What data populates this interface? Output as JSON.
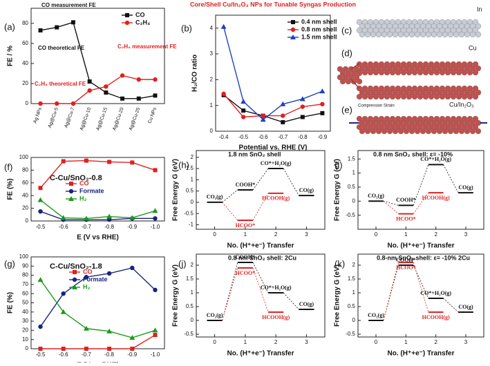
{
  "chart_data": [
    {
      "type": "line",
      "panel": "(a)",
      "ylabel": "FE / %",
      "categories": [
        "Ag NPs",
        "Ag@Cu-5",
        "Ag@Cu-7",
        "Ag@Cu-10",
        "Ag@Cu-15",
        "Ag@Cu-20",
        "Ag@Cu-25",
        "Cu NPs"
      ],
      "ylim": [
        0,
        95
      ],
      "yticks": [
        0,
        20,
        40,
        60,
        80
      ],
      "legend": "upper right",
      "series": [
        {
          "name": "CO",
          "color": "#111111",
          "marker": "square",
          "values": [
            73,
            76,
            81,
            22,
            11,
            5,
            5,
            8
          ]
        },
        {
          "name": "C₂H₄",
          "color": "#e02020",
          "marker": "circle",
          "values": [
            0,
            0,
            0,
            13,
            17,
            28,
            24,
            24
          ]
        }
      ],
      "annotations": [
        {
          "text": "CO measurement FE",
          "color": "#111111"
        },
        {
          "text": "CO theoretical FE",
          "color": "#111111"
        },
        {
          "text": "C₂H₄ measurement FE",
          "color": "#e02020"
        },
        {
          "text": "C₂H₄ theoretical FE",
          "color": "#e02020"
        }
      ]
    },
    {
      "type": "line",
      "panel": "(b)",
      "title": "Core/Shell Cu/In₂O₃ NPs for Tunable Syngas Production",
      "ylabel": "H₂/CO ratio",
      "xlabel": "Potential vs. RHE (V)",
      "categories": [
        "-0.4",
        "-0.5",
        "-0.6",
        "-0.7",
        "-0.8",
        "-0.9"
      ],
      "ylim": [
        0,
        4.5
      ],
      "yticks": [
        0,
        1,
        2,
        3,
        4
      ],
      "legend": "upper right",
      "series": [
        {
          "name": "0.4 nm shell",
          "color": "#111111",
          "marker": "square",
          "values": [
            1.4,
            0.8,
            0.6,
            0.35,
            0.55,
            0.7
          ]
        },
        {
          "name": "0.8 nm shell",
          "color": "#e02020",
          "marker": "circle",
          "values": [
            1.45,
            0.55,
            0.6,
            0.6,
            0.95,
            1.05
          ]
        },
        {
          "name": "1.5 nm shell",
          "color": "#2040c0",
          "marker": "triangle",
          "values": [
            4.05,
            1.15,
            0.45,
            1.05,
            1.25,
            1.55
          ]
        }
      ]
    },
    {
      "type": "line",
      "panel": "(f)",
      "title": "C-Cu/SnO₂-0.8",
      "ylabel": "FE (%)",
      "xlabel": "E (V vs RHE)",
      "categories": [
        "-0.5",
        "-0.6",
        "-0.7",
        "-0.8",
        "-0.9",
        "-1.0"
      ],
      "ylim": [
        0,
        100
      ],
      "yticks": [
        0,
        20,
        40,
        60,
        80,
        100
      ],
      "legend": "center",
      "series": [
        {
          "name": "CO",
          "color": "#e02020",
          "marker": "square",
          "values": [
            52,
            94,
            95,
            93,
            92,
            80
          ]
        },
        {
          "name": "Formate",
          "color": "#1a237e",
          "marker": "circle",
          "values": [
            15,
            2,
            2,
            2,
            4,
            4
          ]
        },
        {
          "name": "H₂",
          "color": "#1a9a1a",
          "marker": "triangle",
          "values": [
            33,
            5,
            4,
            7,
            5,
            16
          ]
        }
      ]
    },
    {
      "type": "energy",
      "panel": "(h)",
      "title": "1.8 nm SnO₂ shell",
      "ylabel": "Free Energy G (eV)",
      "xlabel": "No. (H⁺+e⁻) Transfer",
      "xlim": [
        -0.6,
        3.6
      ],
      "xticks": [
        0,
        1,
        2,
        3
      ],
      "ylim": [
        -1.2,
        2.3
      ],
      "yticks": [
        -1.0,
        -0.5,
        0.0,
        0.5,
        1.0,
        1.5,
        2.0
      ],
      "series": [
        {
          "color": "#111111",
          "x": [
            0,
            1,
            2,
            3
          ],
          "values": [
            0,
            0.55,
            1.5,
            0.3
          ],
          "labels": [
            "CO₂(g)",
            "COOH*",
            "CO*+H₂O(g)",
            "CO(g)"
          ]
        },
        {
          "color": "#e02020",
          "x": [
            1,
            2
          ],
          "values": [
            -0.8,
            0.4
          ],
          "labels": [
            "HCOO*",
            "HCOOH(g)"
          ]
        }
      ]
    },
    {
      "type": "energy",
      "panel": "(i)",
      "title": "0.8 nm SnO₂ shell: ε= -10%",
      "ylabel": "Free Energy G (eV)",
      "xlabel": "No. (H⁺+e⁻) Transfer",
      "xlim": [
        -0.6,
        3.6
      ],
      "xticks": [
        0,
        1,
        2,
        3
      ],
      "ylim": [
        -1.0,
        1.8
      ],
      "yticks": [
        -0.5,
        0.0,
        0.5,
        1.0,
        1.5
      ],
      "series": [
        {
          "color": "#111111",
          "x": [
            0,
            1,
            2,
            3
          ],
          "values": [
            0,
            -0.15,
            1.3,
            0.3
          ],
          "labels": [
            "CO₂(g)",
            "COOH*",
            "CO*+H₂O(g)",
            "CO(g)"
          ]
        },
        {
          "color": "#e02020",
          "x": [
            1,
            2
          ],
          "values": [
            -0.45,
            0.3
          ],
          "labels": [
            "HCOO*",
            "HCOOH(g)"
          ]
        }
      ]
    },
    {
      "type": "line",
      "panel": "(g)",
      "title": "C-Cu/SnO₂-1.8",
      "ylabel": "FE (%)",
      "xlabel": "E (V vs RHE)",
      "categories": [
        "-0.5",
        "-0.6",
        "-0.7",
        "-0.8",
        "-0.9",
        "-1.0"
      ],
      "ylim": [
        0,
        100
      ],
      "yticks": [
        0,
        10,
        20,
        30,
        40,
        50,
        60,
        70,
        80,
        90,
        100
      ],
      "legend": "upper center",
      "series": [
        {
          "name": "CO",
          "color": "#e02020",
          "marker": "square",
          "values": [
            0,
            0,
            0,
            0,
            0,
            15
          ]
        },
        {
          "name": "Formate",
          "color": "#1a237e",
          "marker": "circle",
          "values": [
            24,
            60,
            78,
            82,
            88,
            64
          ]
        },
        {
          "name": "H₂",
          "color": "#1a9a1a",
          "marker": "triangle",
          "values": [
            75,
            40,
            22,
            19,
            12,
            20
          ]
        }
      ]
    },
    {
      "type": "energy",
      "panel": "(j)",
      "title": "0.8 nm SnO₂ shell: 2Cu",
      "ylabel": "Free Energy G (eV)",
      "xlabel": "No. (H⁺+e⁻) Transfer",
      "xlim": [
        -0.6,
        3.6
      ],
      "xticks": [
        0,
        1,
        2,
        3
      ],
      "ylim": [
        -0.6,
        2.4
      ],
      "yticks": [
        -0.5,
        0.0,
        0.5,
        1.0,
        1.5,
        2.0
      ],
      "series": [
        {
          "color": "#111111",
          "x": [
            0,
            1,
            2,
            3
          ],
          "values": [
            0,
            2.1,
            1.0,
            0.4
          ],
          "labels": [
            "CO₂(g)",
            "COOH*",
            "CO*+H₂O(g)",
            "CO(g)"
          ]
        },
        {
          "color": "#e02020",
          "x": [
            1,
            2
          ],
          "values": [
            1.9,
            0.3
          ],
          "labels": [
            "HCOO*",
            "HCOOH(g)"
          ]
        }
      ]
    },
    {
      "type": "energy",
      "panel": "(k)",
      "title": "0.8-nm SnO₂ shell: ε= -10% 2Cu",
      "ylabel": "Free Energy G (eV)",
      "xlabel": "No. (H⁺+e⁻) Transfer",
      "xlim": [
        -0.6,
        3.6
      ],
      "xticks": [
        0,
        1,
        2,
        3
      ],
      "ylim": [
        -0.6,
        2.4
      ],
      "yticks": [
        -0.5,
        0.0,
        0.5,
        1.0,
        1.5,
        2.0
      ],
      "series": [
        {
          "color": "#111111",
          "x": [
            0,
            1,
            2,
            3
          ],
          "values": [
            0,
            2.0,
            0.8,
            0.3
          ],
          "labels": [
            "CO₂(g)",
            "COOH*",
            "CO*+H₂O(g)",
            "CO(g)"
          ]
        },
        {
          "color": "#e02020",
          "x": [
            1,
            2
          ],
          "values": [
            2.1,
            0.3
          ],
          "labels": [
            "HCOO*",
            "HCOOH(g)"
          ]
        }
      ]
    }
  ],
  "diagrams": {
    "c": {
      "panel": "(c)",
      "labels": [
        "In",
        "Cu"
      ]
    },
    "d": {
      "panel": "(d)"
    },
    "e": {
      "panel": "(e)",
      "labels": [
        "Cu/In₂O₃",
        "Compression Strain"
      ]
    }
  }
}
